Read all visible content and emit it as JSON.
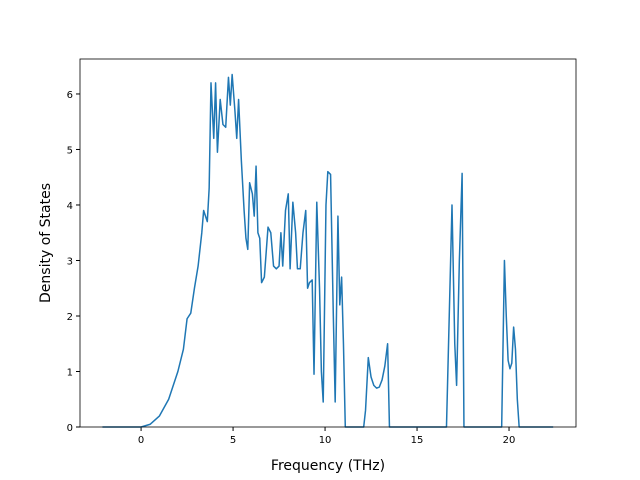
{
  "chart_data": {
    "type": "line",
    "x_label": "Frequency (THz)",
    "y_label": "Density of States",
    "xlim": [
      -3.32,
      23.64
    ],
    "ylim": [
      0,
      6.63
    ],
    "xticks": [
      0,
      5,
      10,
      15,
      20
    ],
    "yticks": [
      0,
      1,
      2,
      3,
      4,
      5,
      6
    ],
    "series": [
      {
        "color": "#1f77b4",
        "x": [
          -2.1,
          0,
          0.5,
          1,
          1.5,
          2,
          2.3,
          2.5,
          2.7,
          2.9,
          3.1,
          3.3,
          3.4,
          3.6,
          3.7,
          3.8,
          3.95,
          4.05,
          4.15,
          4.3,
          4.45,
          4.6,
          4.75,
          4.85,
          4.95,
          5.1,
          5.2,
          5.3,
          5.45,
          5.6,
          5.7,
          5.8,
          5.9,
          6.05,
          6.15,
          6.25,
          6.35,
          6.45,
          6.55,
          6.7,
          6.9,
          7.05,
          7.2,
          7.35,
          7.5,
          7.6,
          7.7,
          7.85,
          8.0,
          8.1,
          8.25,
          8.4,
          8.5,
          8.65,
          8.8,
          8.95,
          9.05,
          9.15,
          9.3,
          9.4,
          9.55,
          9.7,
          9.8,
          9.9,
          10.05,
          10.15,
          10.3,
          10.45,
          10.55,
          10.7,
          10.8,
          10.9,
          11.0,
          11.1,
          12.1,
          12.2,
          12.35,
          12.5,
          12.65,
          12.8,
          12.95,
          13.1,
          13.25,
          13.4,
          13.5,
          16.6,
          16.75,
          16.9,
          17.05,
          17.15,
          17.3,
          17.45,
          17.55,
          19.6,
          19.75,
          19.85,
          19.95,
          20.05,
          20.15,
          20.25,
          20.35,
          20.45,
          20.55,
          22.4
        ],
        "values": [
          0,
          0,
          0.05,
          0.2,
          0.5,
          1.0,
          1.4,
          1.95,
          2.05,
          2.5,
          2.9,
          3.5,
          3.9,
          3.7,
          4.3,
          6.2,
          5.2,
          6.2,
          4.95,
          5.9,
          5.45,
          5.4,
          6.3,
          5.8,
          6.35,
          5.7,
          5.2,
          5.9,
          4.8,
          3.9,
          3.4,
          3.2,
          4.4,
          4.2,
          3.8,
          4.7,
          3.5,
          3.4,
          2.6,
          2.7,
          3.6,
          3.5,
          2.9,
          2.85,
          2.9,
          3.5,
          2.9,
          3.9,
          4.2,
          2.85,
          4.05,
          3.5,
          2.85,
          2.85,
          3.5,
          3.9,
          2.5,
          2.6,
          2.65,
          0.95,
          4.05,
          2.5,
          1.0,
          0.45,
          4.0,
          4.6,
          4.55,
          2.0,
          0.45,
          3.8,
          2.2,
          2.7,
          1.5,
          0,
          0,
          0.3,
          1.25,
          0.9,
          0.75,
          0.7,
          0.72,
          0.85,
          1.1,
          1.5,
          0,
          0,
          2.0,
          4.0,
          1.5,
          0.75,
          3.0,
          4.57,
          0,
          0,
          3.0,
          2.0,
          1.2,
          1.05,
          1.15,
          1.8,
          1.4,
          0.5,
          0,
          0
        ]
      }
    ]
  }
}
